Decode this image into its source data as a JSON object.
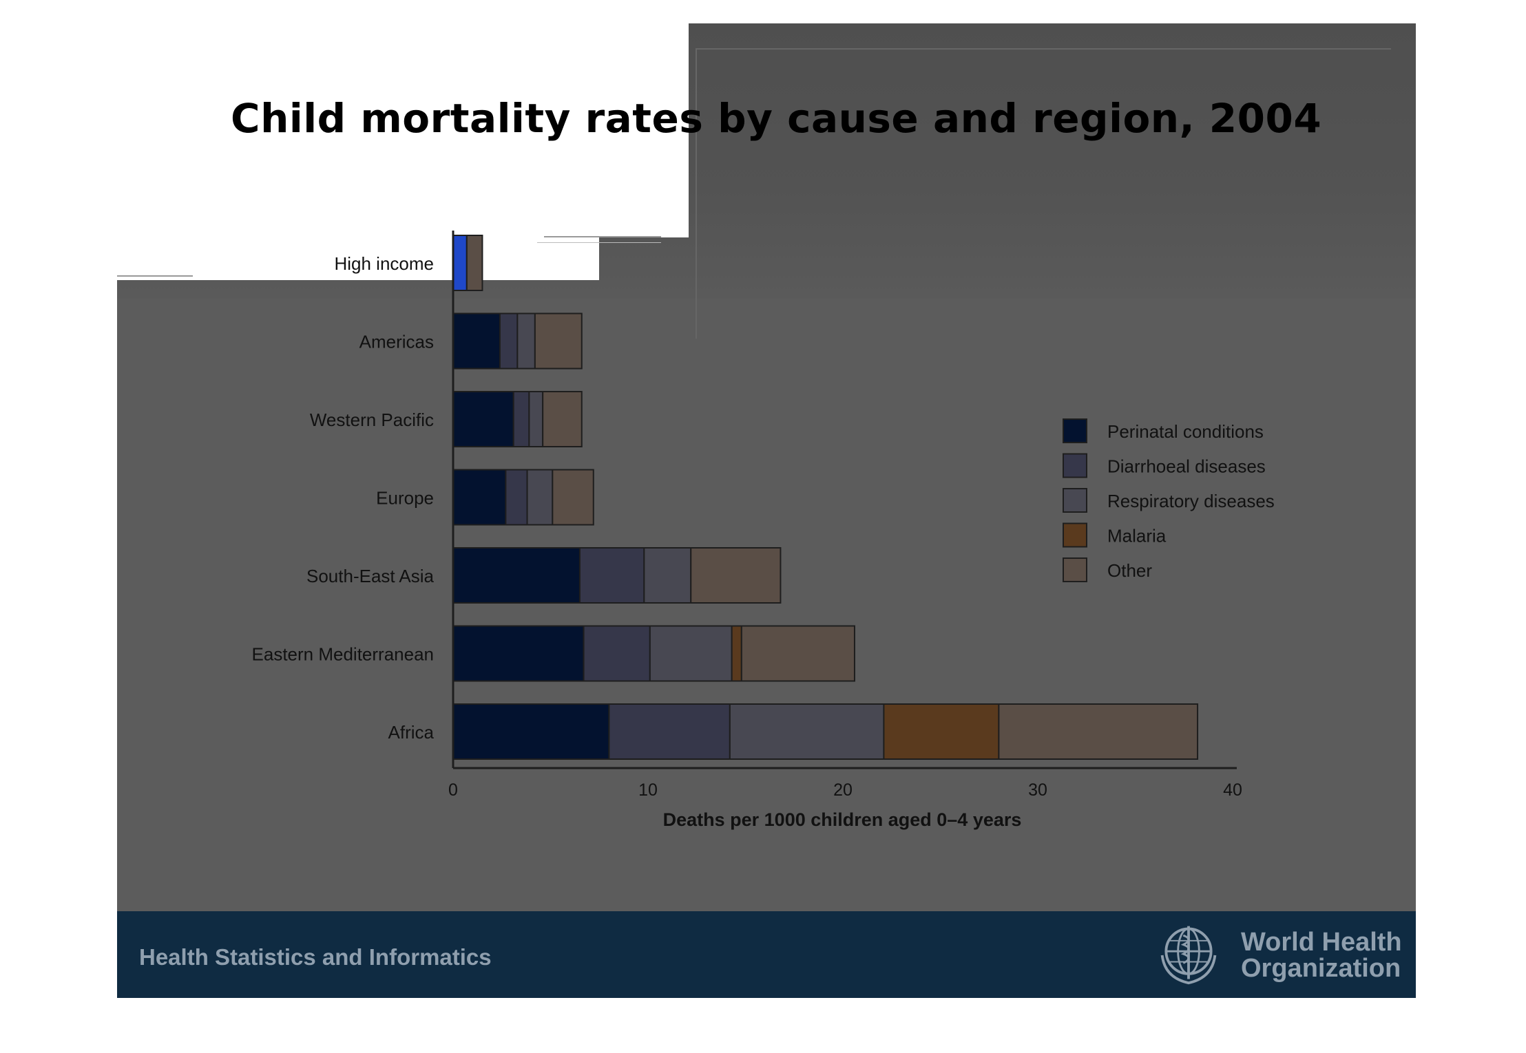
{
  "chart_data": {
    "type": "bar",
    "orientation": "horizontal",
    "stacked": true,
    "title": "Child mortality rates by cause and region, 2004",
    "xlabel": "Deaths per 1000 children aged 0–4 years",
    "ylabel": "",
    "xlim": [
      0,
      40
    ],
    "xticks": [
      0,
      10,
      20,
      30,
      40
    ],
    "categories": [
      "High income",
      "Americas",
      "Western Pacific",
      "Europe",
      "South-East Asia",
      "Eastern Mediterranean",
      "Africa"
    ],
    "series": [
      {
        "name": "Perinatal conditions",
        "color": "#03122f",
        "values": [
          0.7,
          2.4,
          3.1,
          2.7,
          6.5,
          6.7,
          8.0
        ]
      },
      {
        "name": "Diarrhoeal diseases",
        "color": "#36374a",
        "values": [
          0.0,
          0.9,
          0.8,
          1.1,
          3.3,
          3.4,
          6.2
        ]
      },
      {
        "name": "Respiratory diseases",
        "color": "#484852",
        "values": [
          0.0,
          0.9,
          0.7,
          1.3,
          2.4,
          4.2,
          7.9
        ]
      },
      {
        "name": "Malaria",
        "color": "#5a3a1e",
        "values": [
          0.0,
          0.0,
          0.0,
          0.0,
          0.0,
          0.5,
          5.9
        ]
      },
      {
        "name": "Other",
        "color": "#5a4e46",
        "values": [
          0.8,
          2.4,
          2.0,
          2.1,
          4.6,
          5.8,
          10.2
        ]
      }
    ],
    "legend_position": "right",
    "grid": false
  },
  "colors": {
    "slide_bg": "#5c5c5c",
    "footer_bg": "#0f2b42",
    "footer_text": "#8f9fae",
    "axis": "#222222",
    "highlight": "#1f48c9"
  },
  "footer": {
    "left_text": "Health Statistics and Informatics",
    "org_line1": "World Health",
    "org_line2": "Organization",
    "logo_icon": "who-emblem-icon"
  }
}
